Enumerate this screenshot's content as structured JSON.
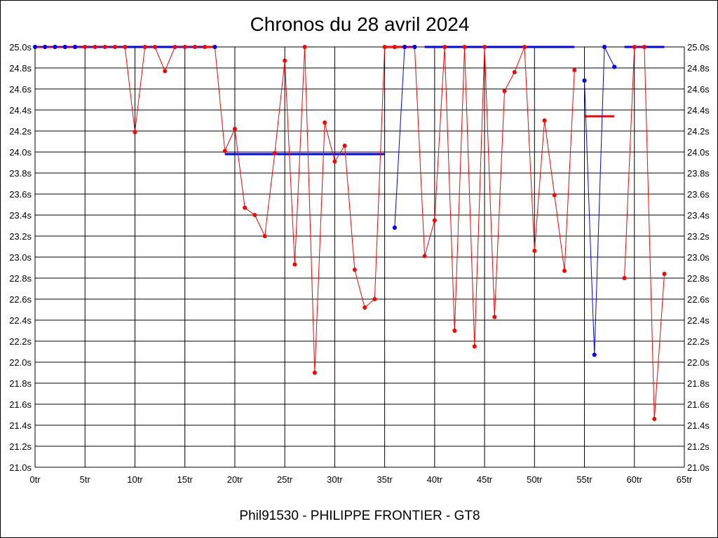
{
  "chart_data": {
    "type": "line",
    "title": "Chronos du 28 avril 2024",
    "footer": "Phil91530 - PHILIPPE FRONTIER - GT8",
    "xlabel": "",
    "ylabel": "",
    "xlim": [
      0,
      65
    ],
    "ylim": [
      21.0,
      25.0
    ],
    "x_ticks": [
      0,
      5,
      10,
      15,
      20,
      25,
      30,
      35,
      40,
      45,
      50,
      55,
      60,
      65
    ],
    "x_tick_labels": [
      "0tr",
      "5tr",
      "10tr",
      "15tr",
      "20tr",
      "25tr",
      "30tr",
      "35tr",
      "40tr",
      "45tr",
      "50tr",
      "55tr",
      "60tr",
      "65tr"
    ],
    "y_ticks": [
      21.0,
      21.2,
      21.4,
      21.6,
      21.8,
      22.0,
      22.2,
      22.4,
      22.6,
      22.8,
      23.0,
      23.2,
      23.4,
      23.6,
      23.8,
      24.0,
      24.2,
      24.4,
      24.6,
      24.8,
      25.0
    ],
    "y_tick_labels": [
      "21.0s",
      "21.2s",
      "21.4s",
      "21.6s",
      "21.8s",
      "22.0s",
      "22.2s",
      "22.4s",
      "22.6s",
      "22.8s",
      "23.0s",
      "23.2s",
      "23.4s",
      "23.6s",
      "23.8s",
      "24.0s",
      "24.2s",
      "24.4s",
      "24.6s",
      "24.8s",
      "25.0s"
    ],
    "grid": true,
    "y_axis_both_sides": true,
    "series": [
      {
        "color": "#ff0000",
        "line_width": 1,
        "points": [
          [
            0,
            25.0
          ],
          [
            1,
            25.0
          ],
          [
            2,
            25.0
          ],
          [
            3,
            25.0
          ],
          [
            4,
            25.0
          ],
          [
            5,
            25.0
          ],
          [
            6,
            25.0
          ],
          [
            7,
            25.0
          ],
          [
            8,
            25.0
          ],
          [
            9,
            25.0
          ],
          [
            10,
            24.19
          ],
          [
            11,
            25.0
          ],
          [
            12,
            25.0
          ],
          [
            13,
            24.77
          ],
          [
            14,
            25.0
          ],
          [
            15,
            25.0
          ],
          [
            16,
            25.0
          ],
          [
            17,
            25.0
          ],
          [
            18,
            25.0
          ],
          [
            19,
            24.01
          ],
          [
            20,
            24.22
          ],
          [
            21,
            23.47
          ],
          [
            22,
            23.4
          ],
          [
            23,
            23.2
          ],
          [
            24,
            23.99
          ],
          [
            25,
            24.87
          ],
          [
            26,
            22.93
          ],
          [
            27,
            25.0
          ],
          [
            28,
            21.9
          ],
          [
            29,
            24.28
          ],
          [
            30,
            23.91
          ],
          [
            31,
            24.06
          ],
          [
            32,
            22.88
          ],
          [
            33,
            22.52
          ],
          [
            34,
            22.6
          ],
          [
            35,
            25.0
          ],
          [
            36,
            25.0
          ],
          [
            37,
            25.0
          ],
          [
            38,
            25.0
          ],
          [
            39,
            23.01
          ],
          [
            40,
            23.35
          ],
          [
            41,
            25.0
          ],
          [
            42,
            22.3
          ],
          [
            43,
            25.0
          ],
          [
            44,
            22.15
          ],
          [
            45,
            25.0
          ],
          [
            46,
            22.43
          ],
          [
            47,
            24.58
          ],
          [
            48,
            24.76
          ],
          [
            49,
            25.0
          ],
          [
            50,
            23.06
          ],
          [
            51,
            24.3
          ],
          [
            52,
            23.59
          ],
          [
            53,
            22.87
          ],
          [
            54,
            24.78
          ],
          [
            59,
            22.8
          ],
          [
            60,
            25.0
          ],
          [
            61,
            25.0
          ],
          [
            62,
            21.46
          ],
          [
            63,
            22.84
          ]
        ],
        "breaks_after_x": [
          54
        ]
      },
      {
        "color": "#0000ff",
        "line_width": 1,
        "points": [
          [
            0,
            25.0
          ],
          [
            1,
            25.0
          ],
          [
            2,
            25.0
          ],
          [
            3,
            25.0
          ],
          [
            4,
            25.0
          ],
          [
            36,
            23.28
          ],
          [
            37,
            25.0
          ],
          [
            38,
            25.0
          ],
          [
            55,
            24.68
          ],
          [
            56,
            22.07
          ],
          [
            57,
            25.0
          ],
          [
            58,
            24.81
          ]
        ],
        "breaks_after_x": [
          4,
          38
        ]
      }
    ],
    "reference_lines": [
      {
        "color": "#0000ff",
        "y": 25.0,
        "x_start": 0,
        "x_end": 18
      },
      {
        "color": "#ff0000",
        "y": 25.0,
        "x_start": 0,
        "x_end": 4
      },
      {
        "color": "#ff0000",
        "y": 25.0,
        "x_start": 17,
        "x_end": 18
      },
      {
        "color": "#0000ff",
        "y": 23.98,
        "x_start": 19,
        "x_end": 35
      },
      {
        "color": "#ff0000",
        "y": 25.0,
        "x_start": 35,
        "x_end": 38
      },
      {
        "color": "#0000ff",
        "y": 25.0,
        "x_start": 39,
        "x_end": 54
      },
      {
        "color": "#ff0000",
        "y": 24.34,
        "x_start": 55,
        "x_end": 58
      },
      {
        "color": "#0000ff",
        "y": 25.0,
        "x_start": 59,
        "x_end": 63
      }
    ],
    "markers": [
      {
        "color": "#0000ff",
        "points": [
          [
            0,
            25.0
          ],
          [
            1,
            25.0
          ],
          [
            2,
            25.0
          ],
          [
            3,
            25.0
          ],
          [
            4,
            25.0
          ],
          [
            18,
            25.0
          ],
          [
            36,
            23.28
          ],
          [
            37,
            25.0
          ],
          [
            38,
            25.0
          ],
          [
            55,
            24.68
          ],
          [
            56,
            22.07
          ],
          [
            57,
            25.0
          ],
          [
            58,
            24.81
          ]
        ]
      }
    ]
  }
}
